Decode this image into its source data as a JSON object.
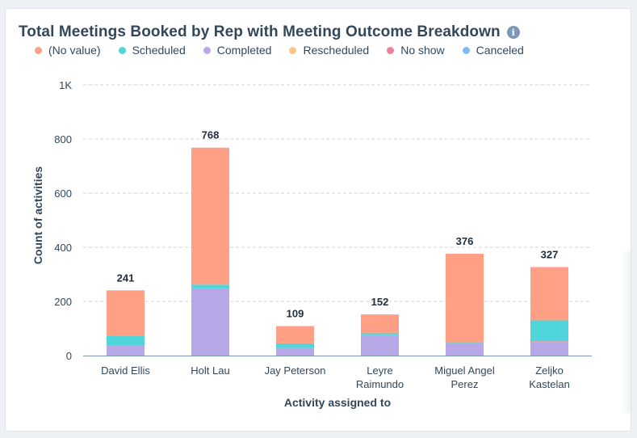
{
  "header": {
    "title": "Total Meetings Booked by Rep with Meeting Outcome Breakdown",
    "info_icon": "info-icon"
  },
  "legend": [
    {
      "label": "(No value)",
      "color": "#ff9f86"
    },
    {
      "label": "Scheduled",
      "color": "#4fd6da"
    },
    {
      "label": "Completed",
      "color": "#b9a8e8"
    },
    {
      "label": "Rescheduled",
      "color": "#ffc48a"
    },
    {
      "label": "No show",
      "color": "#f0809a"
    },
    {
      "label": "Canceled",
      "color": "#7fbcf5"
    }
  ],
  "chart_data": {
    "type": "bar",
    "stacked": true,
    "title": "Total Meetings Booked by Rep with Meeting Outcome Breakdown",
    "xlabel": "Activity assigned to",
    "ylabel": "Count of activities",
    "ylim": [
      0,
      1000
    ],
    "yticks": [
      0,
      200,
      400,
      600,
      800,
      1000
    ],
    "ytick_labels": [
      "0",
      "200",
      "400",
      "600",
      "800",
      "1K"
    ],
    "grid": true,
    "legend_position": "top-left",
    "categories": [
      [
        "David Ellis"
      ],
      [
        "Holt Lau"
      ],
      [
        "Jay Peterson"
      ],
      [
        "Leyre",
        "Raimundo"
      ],
      [
        "Miguel Angel",
        "Perez"
      ],
      [
        "Zeljko",
        "Kastelan"
      ]
    ],
    "totals": [
      "241",
      "768",
      "109",
      "152",
      "376",
      "327"
    ],
    "series": [
      {
        "name": "Completed",
        "color": "#b9a8e8",
        "values": [
          37,
          248,
          28,
          75,
          42,
          50
        ]
      },
      {
        "name": "No show",
        "color": "#f0809a",
        "values": [
          0,
          0,
          0,
          0,
          0,
          3
        ]
      },
      {
        "name": "Canceled",
        "color": "#7fbcf5",
        "values": [
          0,
          0,
          0,
          0,
          0,
          0
        ]
      },
      {
        "name": "Rescheduled",
        "color": "#ffc48a",
        "values": [
          0,
          0,
          0,
          0,
          0,
          0
        ]
      },
      {
        "name": "Scheduled",
        "color": "#4fd6da",
        "values": [
          37,
          14,
          17,
          7,
          5,
          77
        ]
      },
      {
        "name": "(No value)",
        "color": "#ff9f86",
        "values": [
          167,
          506,
          64,
          70,
          329,
          197
        ]
      }
    ]
  }
}
